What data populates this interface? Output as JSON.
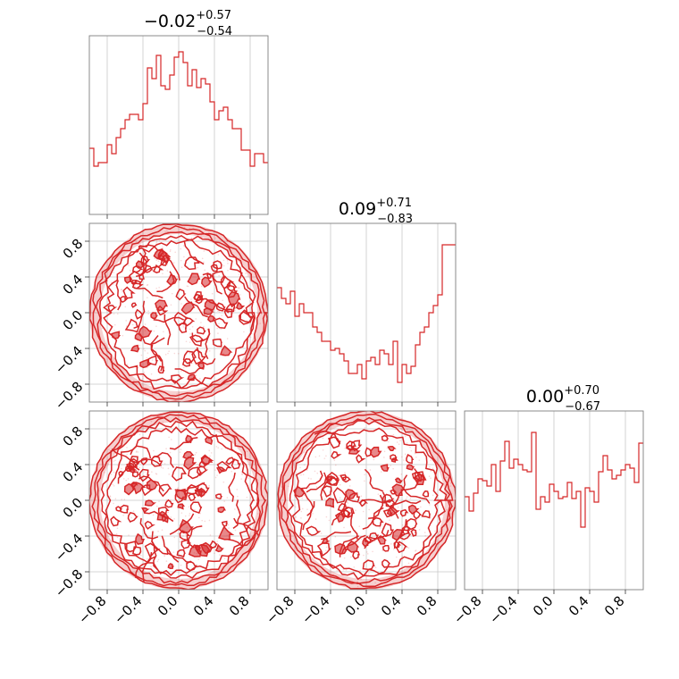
{
  "chart_data": {
    "type": "corner",
    "color": "#d62728",
    "grid": true,
    "axis_range": [
      -1.0,
      1.0
    ],
    "tick_values": [
      -0.8,
      -0.4,
      0.0,
      0.4,
      0.8
    ],
    "tick_labels": [
      "−0.8",
      "−0.4",
      "0.0",
      "0.4",
      "0.8"
    ],
    "histograms": [
      {
        "parameter_index": 0,
        "title_main": "−0.02",
        "title_plus": "+0.57",
        "title_minus": "−0.54",
        "bin_edges_range": [
          -1.0,
          1.0
        ],
        "counts": [
          0.37,
          0.27,
          0.29,
          0.29,
          0.39,
          0.34,
          0.43,
          0.48,
          0.53,
          0.56,
          0.56,
          0.53,
          0.62,
          0.82,
          0.76,
          0.89,
          0.72,
          0.7,
          0.78,
          0.88,
          0.91,
          0.85,
          0.72,
          0.81,
          0.71,
          0.76,
          0.73,
          0.63,
          0.53,
          0.58,
          0.6,
          0.53,
          0.48,
          0.48,
          0.36,
          0.36,
          0.27,
          0.34,
          0.34,
          0.29
        ]
      },
      {
        "parameter_index": 1,
        "title_main": "0.09",
        "title_plus": "+0.71",
        "title_minus": "−0.83",
        "bin_edges_range": [
          -1.0,
          1.0
        ],
        "counts": [
          0.64,
          0.58,
          0.55,
          0.62,
          0.48,
          0.55,
          0.5,
          0.5,
          0.42,
          0.39,
          0.34,
          0.34,
          0.29,
          0.3,
          0.27,
          0.23,
          0.16,
          0.16,
          0.21,
          0.13,
          0.23,
          0.25,
          0.21,
          0.29,
          0.27,
          0.21,
          0.34,
          0.11,
          0.21,
          0.16,
          0.2,
          0.32,
          0.39,
          0.42,
          0.5,
          0.54,
          0.6,
          0.88,
          0.88,
          0.88
        ]
      },
      {
        "parameter_index": 2,
        "title_main": "0.00",
        "title_plus": "+0.70",
        "title_minus": "−0.67",
        "bin_edges_range": [
          -1.0,
          1.0
        ],
        "counts": [
          0.52,
          0.44,
          0.54,
          0.62,
          0.61,
          0.58,
          0.7,
          0.55,
          0.72,
          0.83,
          0.68,
          0.73,
          0.7,
          0.67,
          0.66,
          0.88,
          0.45,
          0.52,
          0.49,
          0.59,
          0.55,
          0.51,
          0.52,
          0.6,
          0.51,
          0.55,
          0.35,
          0.57,
          0.55,
          0.49,
          0.66,
          0.75,
          0.67,
          0.62,
          0.64,
          0.67,
          0.7,
          0.68,
          0.6,
          0.82
        ]
      }
    ],
    "scatter_panels": [
      {
        "x_parameter": 0,
        "y_parameter": 1,
        "support": "unit_disk"
      },
      {
        "x_parameter": 0,
        "y_parameter": 2,
        "support": "unit_disk"
      },
      {
        "x_parameter": 1,
        "y_parameter": 2,
        "support": "unit_disk"
      }
    ]
  }
}
